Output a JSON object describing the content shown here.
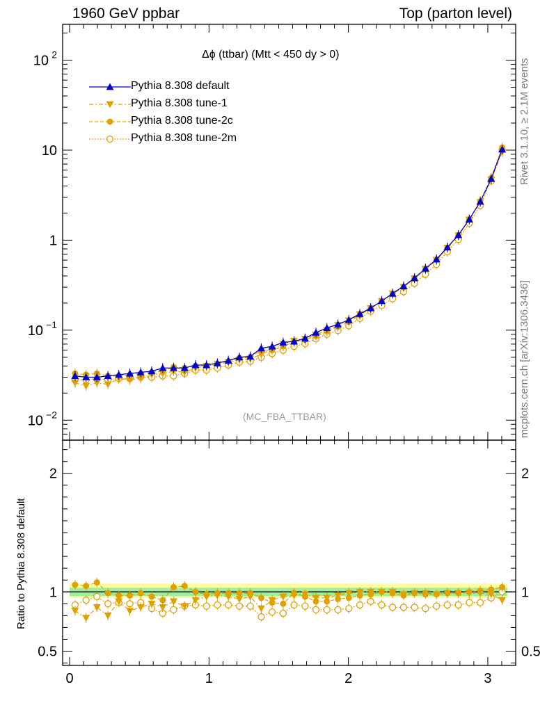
{
  "header": {
    "left": "1960 GeV ppbar",
    "right": "Top (parton level)"
  },
  "side_labels": {
    "rivet": "Rivet 3.1.10, ≥ 2.1M events",
    "mcplots": "mcplots.cern.ch [arXiv:1306.3436]"
  },
  "plot_title": "Δϕ (ttbar) (Mtt < 450 dy > 0)",
  "analysis_tag": "(MC_FBA_TTBAR)",
  "ratio_ylabel": "Ratio to Pythia 8.308 default",
  "colors": {
    "default": "#0000cc",
    "tune": "#e0a000",
    "band_green": "#9ef09e",
    "band_yellow": "#fdfd9e"
  },
  "chart_data": [
    {
      "type": "line",
      "panel": "main",
      "yscale": "log",
      "title": "Δϕ (ttbar) (Mtt < 450 dy > 0)",
      "xlabel": "",
      "ylabel": "",
      "xlim": [
        -0.05,
        3.2
      ],
      "ylim": [
        0.006,
        250
      ],
      "y_ticks": [
        {
          "value": 0.01,
          "label": "10",
          "exp": "−2"
        },
        {
          "value": 0.1,
          "label": "10",
          "exp": "−1"
        },
        {
          "value": 1,
          "label": "1",
          "exp": ""
        },
        {
          "value": 10,
          "label": "10",
          "exp": ""
        },
        {
          "value": 100,
          "label": "10",
          "exp": "2"
        }
      ],
      "x": [
        0.039,
        0.118,
        0.196,
        0.275,
        0.353,
        0.432,
        0.51,
        0.589,
        0.668,
        0.746,
        0.825,
        0.903,
        0.982,
        1.06,
        1.139,
        1.218,
        1.296,
        1.375,
        1.453,
        1.532,
        1.61,
        1.689,
        1.767,
        1.846,
        1.925,
        2.003,
        2.082,
        2.16,
        2.239,
        2.317,
        2.396,
        2.474,
        2.553,
        2.632,
        2.71,
        2.789,
        2.867,
        2.946,
        3.024,
        3.103
      ],
      "series": [
        {
          "name": "Pythia 8.308 default",
          "marker": "triangle-up",
          "values": [
            0.031,
            0.03,
            0.03,
            0.031,
            0.032,
            0.033,
            0.034,
            0.035,
            0.038,
            0.038,
            0.038,
            0.041,
            0.041,
            0.043,
            0.046,
            0.05,
            0.051,
            0.063,
            0.066,
            0.073,
            0.075,
            0.081,
            0.094,
            0.106,
            0.116,
            0.13,
            0.152,
            0.176,
            0.211,
            0.255,
            0.308,
            0.379,
            0.484,
            0.613,
            0.832,
            1.141,
            1.7,
            2.68,
            4.8,
            10.2
          ]
        },
        {
          "name": "Pythia 8.308 tune-1",
          "marker": "triangle-down",
          "values": [
            0.026,
            0.024,
            0.026,
            0.025,
            0.029,
            0.028,
            0.029,
            0.032,
            0.033,
            0.035,
            0.034,
            0.038,
            0.04,
            0.042,
            0.044,
            0.047,
            0.048,
            0.054,
            0.061,
            0.07,
            0.076,
            0.08,
            0.089,
            0.1,
            0.114,
            0.128,
            0.15,
            0.175,
            0.21,
            0.255,
            0.301,
            0.375,
            0.48,
            0.602,
            0.822,
            1.13,
            1.69,
            2.64,
            4.7,
            9.5
          ]
        },
        {
          "name": "Pythia 8.308 tune-2c",
          "marker": "circle",
          "values": [
            0.033,
            0.032,
            0.033,
            0.031,
            0.031,
            0.032,
            0.033,
            0.034,
            0.035,
            0.039,
            0.038,
            0.04,
            0.04,
            0.042,
            0.045,
            0.049,
            0.05,
            0.06,
            0.06,
            0.066,
            0.074,
            0.078,
            0.086,
            0.097,
            0.109,
            0.124,
            0.147,
            0.173,
            0.211,
            0.253,
            0.3,
            0.374,
            0.474,
            0.604,
            0.823,
            1.132,
            1.7,
            2.7,
            4.9,
            10.7
          ]
        },
        {
          "name": "Pythia 8.308 tune-2m",
          "marker": "circle-open",
          "values": [
            0.028,
            0.028,
            0.029,
            0.028,
            0.029,
            0.029,
            0.03,
            0.03,
            0.031,
            0.031,
            0.033,
            0.036,
            0.036,
            0.038,
            0.041,
            0.044,
            0.045,
            0.05,
            0.055,
            0.06,
            0.066,
            0.071,
            0.08,
            0.09,
            0.099,
            0.112,
            0.135,
            0.162,
            0.188,
            0.223,
            0.268,
            0.331,
            0.418,
            0.537,
            0.744,
            1.02,
            1.54,
            2.43,
            4.55,
            10.1
          ]
        }
      ],
      "legend": "top-left"
    },
    {
      "type": "line",
      "panel": "ratio",
      "xlabel": "",
      "ylabel": "Ratio to Pythia 8.308 default",
      "xlim": [
        -0.05,
        3.2
      ],
      "ylim": [
        0.38,
        2.28
      ],
      "y_ticks": [
        {
          "value": 0.5,
          "label": "0.5"
        },
        {
          "value": 1,
          "label": "1"
        },
        {
          "value": 2,
          "label": "2"
        }
      ],
      "x_ticks": [
        {
          "value": 0,
          "label": "0"
        },
        {
          "value": 1,
          "label": "1"
        },
        {
          "value": 2,
          "label": "2"
        },
        {
          "value": 3,
          "label": "3"
        }
      ],
      "x": [
        0.039,
        0.118,
        0.196,
        0.275,
        0.353,
        0.432,
        0.51,
        0.589,
        0.668,
        0.746,
        0.825,
        0.903,
        0.982,
        1.06,
        1.139,
        1.218,
        1.296,
        1.375,
        1.453,
        1.532,
        1.61,
        1.689,
        1.767,
        1.846,
        1.925,
        2.003,
        2.082,
        2.16,
        2.239,
        2.317,
        2.396,
        2.474,
        2.553,
        2.632,
        2.71,
        2.789,
        2.867,
        2.946,
        3.024,
        3.103
      ],
      "series": [
        {
          "name": "Pythia 8.308 tune-1",
          "marker": "triangle-down",
          "values": [
            0.84,
            0.78,
            0.87,
            0.8,
            0.92,
            0.84,
            0.87,
            0.9,
            0.87,
            0.92,
            0.88,
            0.93,
            0.96,
            0.97,
            0.96,
            0.94,
            0.96,
            0.86,
            0.93,
            0.96,
            0.97,
            0.98,
            0.95,
            0.95,
            0.97,
            0.99,
            1.0,
            1.0,
            1.0,
            1.0,
            0.98,
            0.99,
            0.99,
            0.98,
            0.99,
            0.99,
            0.99,
            0.99,
            0.98,
            0.93
          ]
        },
        {
          "name": "Pythia 8.308 tune-2c",
          "marker": "circle",
          "values": [
            1.06,
            1.05,
            1.08,
            0.99,
            0.97,
            0.97,
            0.99,
            0.96,
            0.93,
            1.04,
            1.05,
            1.0,
            0.98,
            0.99,
            0.99,
            0.99,
            0.99,
            0.95,
            0.91,
            0.9,
            0.99,
            0.96,
            0.92,
            0.92,
            0.94,
            0.95,
            0.97,
            0.98,
            1.0,
            0.99,
            0.97,
            0.99,
            0.98,
            0.98,
            0.99,
            0.99,
            1.0,
            1.01,
            1.02,
            1.04
          ]
        },
        {
          "name": "Pythia 8.308 tune-2m",
          "marker": "circle-open",
          "values": [
            0.89,
            0.93,
            0.96,
            0.9,
            0.91,
            0.9,
            0.91,
            0.86,
            0.82,
            0.85,
            0.88,
            0.89,
            0.88,
            0.89,
            0.89,
            0.88,
            0.88,
            0.79,
            0.83,
            0.82,
            0.89,
            0.88,
            0.85,
            0.85,
            0.85,
            0.86,
            0.89,
            0.92,
            0.89,
            0.87,
            0.87,
            0.87,
            0.86,
            0.88,
            0.89,
            0.89,
            0.91,
            0.91,
            0.95,
            1.0
          ]
        }
      ]
    }
  ]
}
